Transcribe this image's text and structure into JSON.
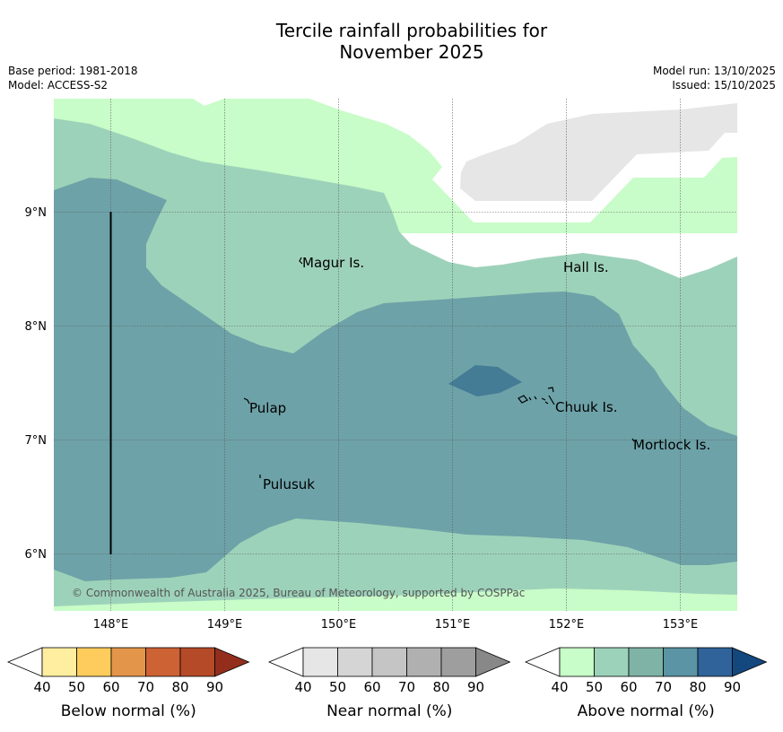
{
  "title": {
    "line1": "Tercile rainfall probabilities for",
    "line2": "November 2025"
  },
  "meta": {
    "base_period": "Base period: 1981-2018",
    "model": "Model: ACCESS-S2",
    "model_run": "Model run: 13/10/2025",
    "issued": "Issued: 15/10/2025"
  },
  "map": {
    "lon_labels": [
      "148°E",
      "149°E",
      "150°E",
      "151°E",
      "152°E",
      "153°E"
    ],
    "lat_labels": [
      "9°N",
      "8°N",
      "7°N",
      "6°N"
    ],
    "islands": [
      {
        "name": "Magur Is."
      },
      {
        "name": "Hall Is."
      },
      {
        "name": "Pulap"
      },
      {
        "name": "Chuuk Is."
      },
      {
        "name": "Mortlock Is."
      },
      {
        "name": "Pulusuk"
      }
    ],
    "copyright": "© Commonwealth of Australia 2025, Bureau of Meteorology, supported by COSPPac"
  },
  "legends": [
    {
      "name": "below",
      "label": "Below normal (%)",
      "ticks": [
        "40",
        "50",
        "60",
        "70",
        "80",
        "90"
      ],
      "colors": [
        "#ffffff",
        "#ffeda0",
        "#fecc5c",
        "#e3954a",
        "#cd6234",
        "#b44a28",
        "#932e1d"
      ]
    },
    {
      "name": "near",
      "label": "Near normal (%)",
      "ticks": [
        "40",
        "50",
        "60",
        "70",
        "80",
        "90"
      ],
      "colors": [
        "#ffffff",
        "#e6e6e6",
        "#d5d5d5",
        "#c5c5c5",
        "#b0b0b0",
        "#9e9e9e",
        "#888888"
      ]
    },
    {
      "name": "above",
      "label": "Above normal (%)",
      "ticks": [
        "40",
        "50",
        "60",
        "70",
        "80",
        "90"
      ],
      "colors": [
        "#ffffff",
        "#c8fcc8",
        "#9dd2ba",
        "#7eb3a6",
        "#5b94a4",
        "#2f6399",
        "#13487e"
      ]
    }
  ]
}
